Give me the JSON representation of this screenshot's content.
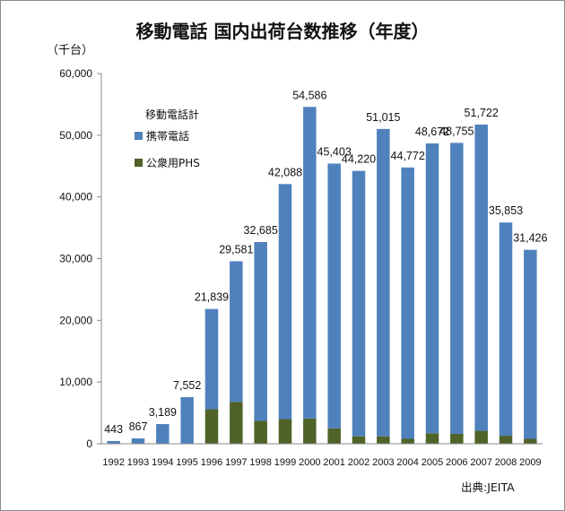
{
  "chart_data": {
    "type": "bar",
    "stacked": true,
    "title": "移動電話 国内出荷台数推移（年度）",
    "ylabel": "（千台）",
    "xlabel": "",
    "ylim": [
      0,
      60000
    ],
    "yticks": [
      "0",
      "10,000",
      "20,000",
      "30,000",
      "40,000",
      "50,000",
      "60,000"
    ],
    "ytick_values": [
      0,
      10000,
      20000,
      30000,
      40000,
      50000,
      60000
    ],
    "grid": false,
    "legend_title": "移動電話計",
    "legend_position": "top-left",
    "categories": [
      "1992",
      "1993",
      "1994",
      "1995",
      "1996",
      "1997",
      "1998",
      "1999",
      "2000",
      "2001",
      "2002",
      "2003",
      "2004",
      "2005",
      "2006",
      "2007",
      "2008",
      "2009"
    ],
    "series": [
      {
        "name": "公衆用PHS",
        "color": "#4f6228",
        "values": [
          0,
          0,
          0,
          0,
          5600,
          6800,
          3700,
          4000,
          4100,
          2500,
          1200,
          1200,
          800,
          1700,
          1600,
          2100,
          1300,
          800
        ]
      },
      {
        "name": "携帯電話",
        "color": "#4f81bd",
        "values": [
          443,
          867,
          3189,
          7552,
          16239,
          22781,
          28985,
          38088,
          50486,
          42903,
          43020,
          49815,
          43972,
          46972,
          47155,
          49622,
          34553,
          30626
        ]
      }
    ],
    "totals": [
      443,
      867,
      3189,
      7552,
      21839,
      29581,
      32685,
      42088,
      54586,
      45403,
      44220,
      51015,
      44772,
      48672,
      48755,
      51722,
      35853,
      31426
    ],
    "total_labels": [
      "443",
      "867",
      "3,189",
      "7,552",
      "21,839",
      "29,581",
      "32,685",
      "42,088",
      "54,586",
      "45,403",
      "44,220",
      "51,015",
      "44,772",
      "48,672",
      "48,755",
      "51,722",
      "35,853",
      "31,426"
    ]
  },
  "source": "出典:JEITA"
}
